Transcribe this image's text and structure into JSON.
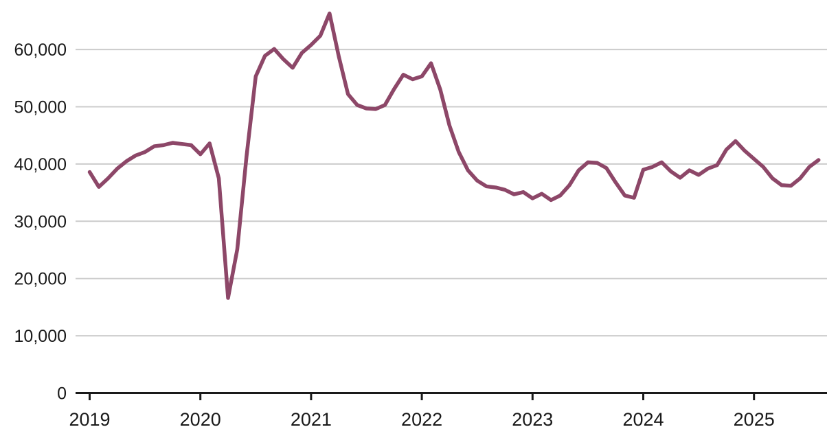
{
  "page": {
    "background": "#ffffff",
    "title": ""
  },
  "chart_data": {
    "type": "line",
    "title": "",
    "xlabel": "",
    "ylabel": "",
    "grid": "horizontal",
    "legend": "none",
    "x_axis": {
      "tick_labels": [
        "2019",
        "2020",
        "2021",
        "2022",
        "2023",
        "2024",
        "2025"
      ],
      "unit": "year",
      "start_month": "2019-01",
      "end_month": "2025-08"
    },
    "y_axis": {
      "tick_labels": [
        "0",
        "10,000",
        "20,000",
        "30,000",
        "40,000",
        "50,000",
        "60,000"
      ],
      "tick_values": [
        0,
        10000,
        20000,
        30000,
        40000,
        50000,
        60000
      ],
      "range": [
        0,
        67000
      ]
    },
    "series": [
      {
        "name": "monthly-series",
        "color": "#8d4768",
        "frequency": "monthly",
        "first_point": "2019-01",
        "values": [
          38600,
          36000,
          37500,
          39200,
          40500,
          41500,
          42100,
          43100,
          43300,
          43700,
          43500,
          43300,
          41700,
          43600,
          37500,
          16600,
          25100,
          41300,
          55300,
          58900,
          60100,
          58300,
          56800,
          59400,
          60800,
          62400,
          66300,
          58800,
          52200,
          50300,
          49700,
          49600,
          50300,
          53100,
          55600,
          54800,
          55300,
          57600,
          53000,
          46700,
          42100,
          38900,
          37100,
          36100,
          35900,
          35500,
          34700,
          35100,
          34000,
          34800,
          33700,
          34500,
          36300,
          38900,
          40300,
          40200,
          39300,
          36800,
          34500,
          34100,
          39000,
          39500,
          40300,
          38700,
          37600,
          38900,
          38100,
          39200,
          39800,
          42500,
          44000,
          42300,
          40900,
          39500,
          37500,
          36300,
          36200,
          37500,
          39500,
          40700
        ]
      }
    ],
    "colors": {
      "line": "#8d4768",
      "grid": "#cccccc",
      "axis": "#1a1a1a",
      "text": "#1a1a1a"
    }
  }
}
